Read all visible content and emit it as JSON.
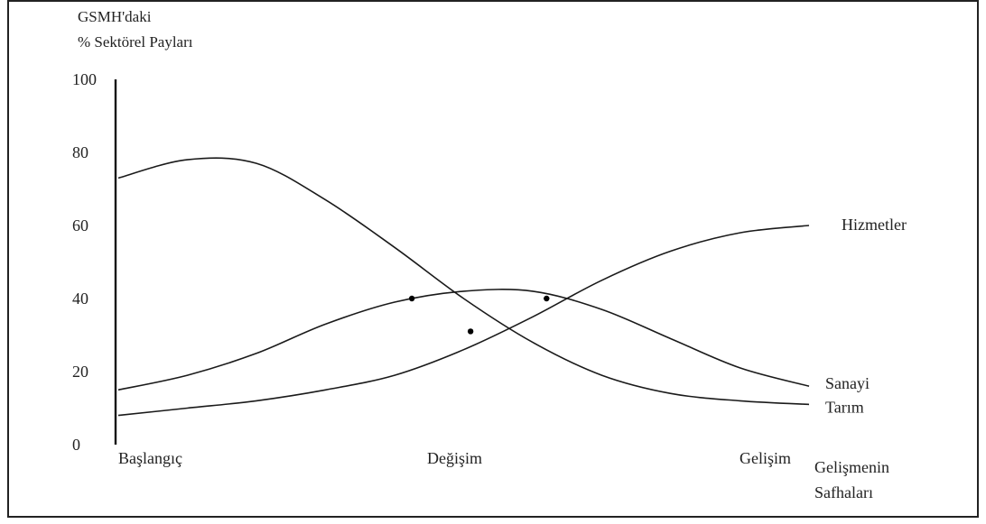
{
  "chart_data": {
    "type": "line",
    "title_lines": [
      "GSMH'daki",
      "% Sektörel Payları"
    ],
    "xlabel_lines": [
      "Gelişmenin",
      "Safhaları"
    ],
    "ylim": [
      0,
      100
    ],
    "y_ticks": [
      0,
      20,
      40,
      60,
      80,
      100
    ],
    "x_categories": [
      "Başlangıç",
      "Değişim",
      "Gelişim"
    ],
    "x": [
      0,
      0.1,
      0.2,
      0.3,
      0.4,
      0.5,
      0.6,
      0.7,
      0.8,
      0.9,
      1.0
    ],
    "series": [
      {
        "name": "Tarım",
        "values": [
          73,
          78,
          77,
          67,
          54,
          40,
          28,
          19,
          14,
          12,
          11
        ]
      },
      {
        "name": "Sanayi",
        "values": [
          15,
          19,
          25,
          33,
          39,
          42,
          42,
          37,
          29,
          21,
          16
        ]
      },
      {
        "name": "Hizmetler",
        "values": [
          8,
          10,
          12,
          15,
          19,
          26,
          35,
          45,
          53,
          58,
          60
        ]
      }
    ],
    "intersections": [
      {
        "x": 0.425,
        "y": 40
      },
      {
        "x": 0.51,
        "y": 31
      },
      {
        "x": 0.62,
        "y": 40
      }
    ],
    "series_label_text": {
      "Tarım": "Tarım",
      "Sanayi": "Sanayi",
      "Hizmetler": "Hizmetler"
    },
    "grid": false,
    "legend": "inline-right"
  }
}
